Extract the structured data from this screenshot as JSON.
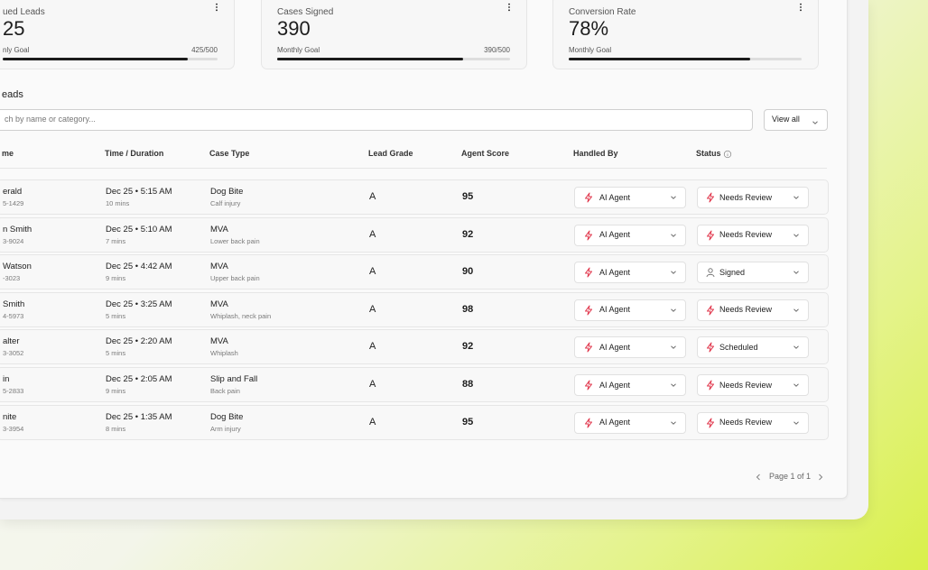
{
  "cards": [
    {
      "title": "ued Leads",
      "value": "25",
      "goal_label": "nly Goal",
      "goal_value": "425/500"
    },
    {
      "title": "Cases Signed",
      "value": "390",
      "goal_label": "Monthly Goal",
      "goal_value": "390/500"
    },
    {
      "title": "Conversion Rate",
      "value": "78%",
      "goal_label": "Monthly Goal"
    }
  ],
  "section_title": "eads",
  "search_placeholder": "ch by name or category...",
  "filter": "View all",
  "table": {
    "headers": [
      "me",
      "Time / Duration",
      "Case Type",
      "Lead Grade",
      "Agent Score",
      "Handled By",
      "Status"
    ],
    "rows": [
      {
        "name": "erald",
        "phone": "5-1429",
        "time": "Dec 25 • 5:15 AM",
        "duration": "10 mins",
        "case_type": "Dog Bite",
        "case_detail": "Calf injury",
        "grade": "A",
        "score": "95",
        "handled_by": "AI Agent",
        "status": "Needs Review"
      },
      {
        "name": "n Smith",
        "phone": "3-9024",
        "time": "Dec 25 • 5:10 AM",
        "duration": "7 mins",
        "case_type": "MVA",
        "case_detail": "Lower back pain",
        "grade": "A",
        "score": "92",
        "handled_by": "AI Agent",
        "status": "Needs Review"
      },
      {
        "name": "Watson",
        "phone": "-3023",
        "time": "Dec 25 • 4:42 AM",
        "duration": "9 mins",
        "case_type": "MVA",
        "case_detail": "Upper back pain",
        "grade": "A",
        "score": "90",
        "handled_by": "AI Agent",
        "status": "Signed"
      },
      {
        "name": "Smith",
        "phone": "4-5973",
        "time": "Dec 25 • 3:25 AM",
        "duration": "5 mins",
        "case_type": "MVA",
        "case_detail": "Whiplash, neck pain",
        "grade": "A",
        "score": "98",
        "handled_by": "AI Agent",
        "status": "Needs Review"
      },
      {
        "name": "alter",
        "phone": "3-3052",
        "time": "Dec 25 • 2:20 AM",
        "duration": "5 mins",
        "case_type": "MVA",
        "case_detail": "Whiplash",
        "grade": "A",
        "score": "92",
        "handled_by": "AI Agent",
        "status": "Scheduled"
      },
      {
        "name": "in",
        "phone": "5-2833",
        "time": "Dec 25 • 2:05 AM",
        "duration": "9 mins",
        "case_type": "Slip and Fall",
        "case_detail": "Back pain",
        "grade": "A",
        "score": "88",
        "handled_by": "AI Agent",
        "status": "Needs Review"
      },
      {
        "name": "nite",
        "phone": "3-3954",
        "time": "Dec 25 • 1:35 AM",
        "duration": "8 mins",
        "case_type": "Dog Bite",
        "case_detail": "Arm injury",
        "grade": "A",
        "score": "95",
        "handled_by": "AI Agent",
        "status": "Needs Review"
      }
    ]
  },
  "pagination": "Page 1 of 1"
}
